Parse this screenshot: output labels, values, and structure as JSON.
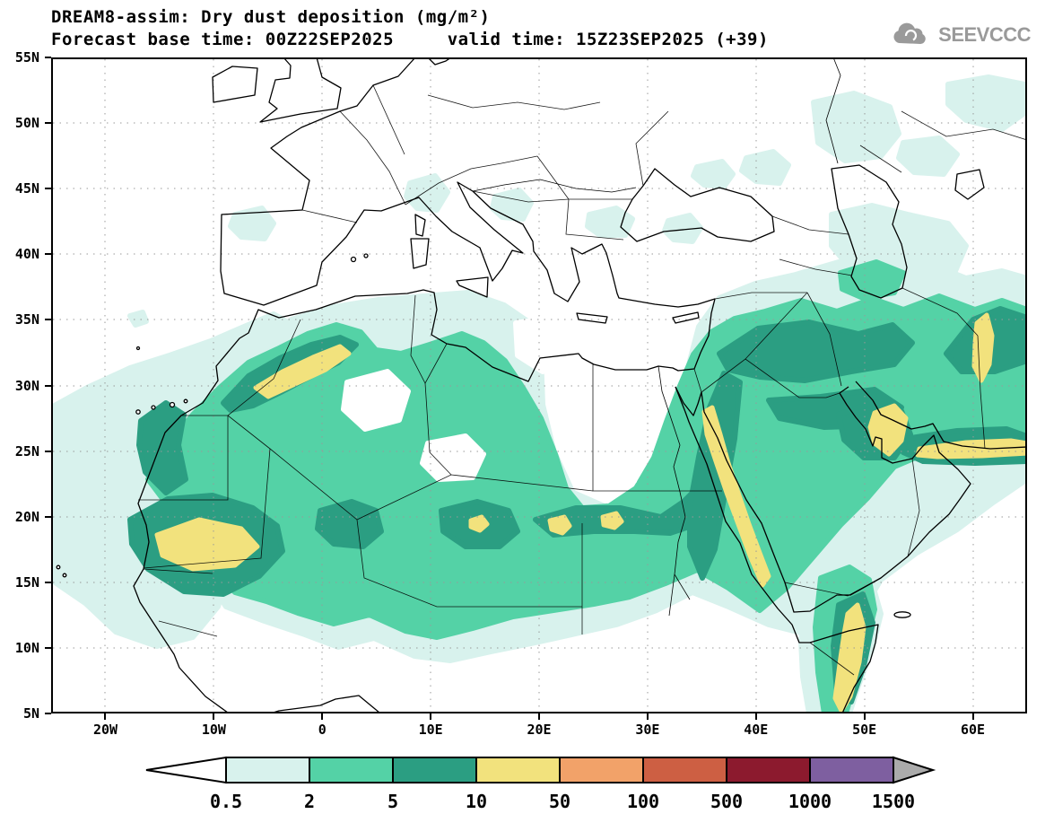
{
  "header": {
    "title": "DREAM8-assim: Dry dust deposition (mg/m²)",
    "subtitle": "Forecast base time: 00Z22SEP2025     valid time: 15Z23SEP2025 (+39)"
  },
  "logo": {
    "text": "SEEVCCC"
  },
  "map": {
    "lat_labels": [
      "55N",
      "50N",
      "45N",
      "40N",
      "35N",
      "30N",
      "25N",
      "20N",
      "15N",
      "10N",
      "5N"
    ],
    "lon_labels": [
      "20W",
      "10W",
      "0",
      "10E",
      "20E",
      "30E",
      "40E",
      "50E",
      "60E"
    ]
  },
  "colorbar": {
    "boundary_labels": [
      "0.5",
      "2",
      "5",
      "10",
      "50",
      "100",
      "500",
      "1000",
      "1500"
    ],
    "below_min_color": "#ffffff",
    "above_max_color": "#ababab",
    "cell_colors": [
      "#d8f2ed",
      "#54d2a6",
      "#2b9e82",
      "#f2e27d",
      "#f2a269",
      "#cd5f43",
      "#8c1a2e",
      "#7e5fa0"
    ]
  },
  "chart_data": {
    "type": "heatmap",
    "title": "DREAM8-assim: Dry dust deposition (mg/m²)",
    "variable": "Dry dust deposition",
    "units": "mg/m²",
    "model": "DREAM8-assim",
    "forecast_base_time": "00Z22SEP2025",
    "valid_time": "15Z23SEP2025",
    "forecast_hour": "+39",
    "contour_levels": [
      0.5,
      2,
      5,
      10,
      50,
      100,
      500,
      1000,
      1500
    ],
    "level_colors_low_to_high": [
      "#ffffff",
      "#d8f2ed",
      "#54d2a6",
      "#2b9e82",
      "#f2e27d",
      "#f2a269",
      "#cd5f43",
      "#8c1a2e",
      "#7e5fa0",
      "#ababab"
    ],
    "lat_ticks": [
      "5N",
      "10N",
      "15N",
      "20N",
      "25N",
      "30N",
      "35N",
      "40N",
      "45N",
      "50N",
      "55N"
    ],
    "lon_ticks": [
      "20W",
      "10W",
      "0",
      "10E",
      "20E",
      "30E",
      "40E",
      "50E",
      "60E"
    ],
    "grid": "dotted",
    "legend_position": "bottom horizontal colorbar",
    "main_deposition_features": [
      {
        "region": "Saharan Atlas, NW Africa (~29-33N, 6W-3E)",
        "peak_level_mg_m2": "10-50"
      },
      {
        "region": "Mali / Mauritania (~15-19N, 15W-7W)",
        "peak_level_mg_m2": "10-50"
      },
      {
        "region": "Saudi Red Sea coast / Tihama (~14-29N, 36-42E)",
        "peak_level_mg_m2": "10-50"
      },
      {
        "region": "Qatar / Persian Gulf (~24-28N, 50-53E)",
        "peak_level_mg_m2": "10-50"
      },
      {
        "region": "Makran coast, S Iran (~25-26N, 54-65E)",
        "peak_level_mg_m2": "10-50"
      },
      {
        "region": "Eastern Iran (~26-35N, 60-62E)",
        "peak_level_mg_m2": "10-50"
      },
      {
        "region": "Somalia (~5-11N, 47-50E)",
        "peak_level_mg_m2": "10-50"
      },
      {
        "region": "Sahara-Sahel band across Africa (~12-22N)",
        "peak_level_mg_m2": "5-10"
      },
      {
        "region": "Mesopotamia / Syria / Iraq (~28-34N, 38-49E)",
        "peak_level_mg_m2": "5-10"
      },
      {
        "region": "Atlantic off West Africa (~10-27N)",
        "peak_level_mg_m2": "0.5-2"
      }
    ]
  }
}
